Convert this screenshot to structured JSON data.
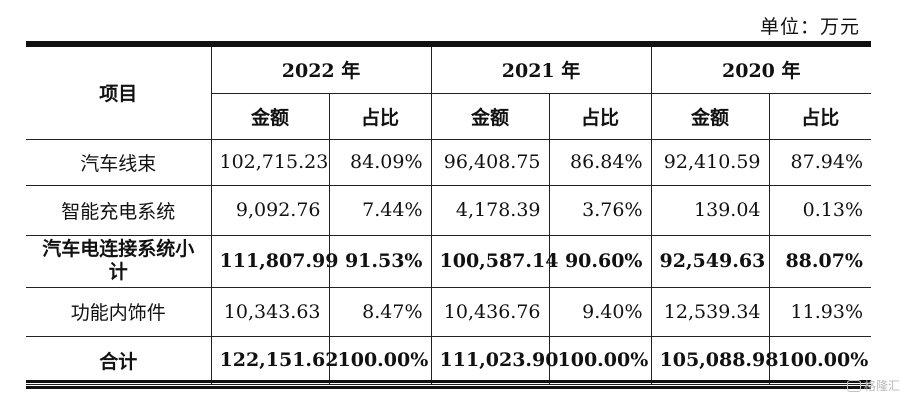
{
  "unit_label": "单位：万元",
  "header": {
    "item": "项目",
    "years": [
      "2022 年",
      "2021 年",
      "2020 年"
    ],
    "amount": "金额",
    "ratio": "占比"
  },
  "rows": [
    {
      "item": "汽车线束",
      "bold": false,
      "v": [
        "102,715.23",
        "84.09%",
        "96,408.75",
        "86.84%",
        "92,410.59",
        "87.94%"
      ]
    },
    {
      "item": "智能充电系统",
      "bold": false,
      "v": [
        "9,092.76",
        "7.44%",
        "4,178.39",
        "3.76%",
        "139.04",
        "0.13%"
      ]
    },
    {
      "item": "汽车电连接系统小计",
      "bold": true,
      "v": [
        "111,807.99",
        "91.53%",
        "100,587.14",
        "90.60%",
        "92,549.63",
        "88.07%"
      ]
    },
    {
      "item": "功能内饰件",
      "bold": false,
      "v": [
        "10,343.63",
        "8.47%",
        "10,436.76",
        "9.40%",
        "12,539.34",
        "11.93%"
      ]
    },
    {
      "item": "合计",
      "bold": true,
      "v": [
        "122,151.62",
        "100.00%",
        "111,023.90",
        "100.00%",
        "105,088.98",
        "100.00%"
      ]
    }
  ],
  "watermark": "格隆汇"
}
